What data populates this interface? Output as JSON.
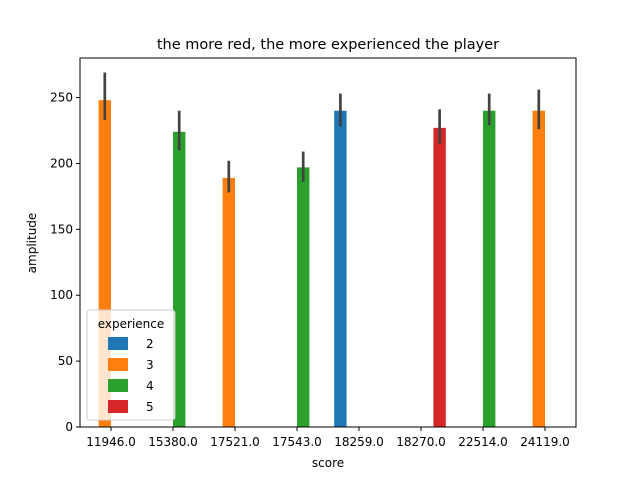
{
  "chart_data": {
    "type": "bar",
    "title": "the more red, the more experienced the player",
    "xlabel": "score",
    "ylabel": "amplitude",
    "categories": [
      "11946.0",
      "15380.0",
      "17521.0",
      "17543.0",
      "18259.0",
      "18270.0",
      "22514.0",
      "24119.0"
    ],
    "ylim": [
      0,
      280
    ],
    "yticks": [
      0,
      50,
      100,
      150,
      200,
      250
    ],
    "legend": {
      "title": "experience",
      "placement": "lower-left"
    },
    "series": [
      {
        "name": "2",
        "color": "#1f77b4",
        "values": [
          null,
          null,
          null,
          null,
          240,
          null,
          null,
          null
        ],
        "err_low": [
          null,
          null,
          null,
          null,
          228,
          null,
          null,
          null
        ],
        "err_high": [
          null,
          null,
          null,
          null,
          253,
          null,
          null,
          null
        ]
      },
      {
        "name": "3",
        "color": "#ff7f0e",
        "values": [
          248,
          null,
          189,
          null,
          null,
          null,
          null,
          240
        ],
        "err_low": [
          233,
          null,
          178,
          null,
          null,
          null,
          null,
          226
        ],
        "err_high": [
          269,
          null,
          202,
          null,
          null,
          null,
          null,
          256
        ]
      },
      {
        "name": "4",
        "color": "#2ca02c",
        "values": [
          null,
          224,
          null,
          197,
          null,
          null,
          240,
          null
        ],
        "err_low": [
          null,
          210,
          null,
          186,
          null,
          null,
          229,
          null
        ],
        "err_high": [
          null,
          240,
          null,
          209,
          null,
          null,
          253,
          null
        ]
      },
      {
        "name": "5",
        "color": "#d62728",
        "values": [
          null,
          null,
          null,
          null,
          null,
          227,
          null,
          null
        ],
        "err_low": [
          null,
          null,
          null,
          null,
          null,
          215,
          null,
          null
        ],
        "err_high": [
          null,
          null,
          null,
          null,
          null,
          241,
          null,
          null
        ]
      }
    ],
    "grid": false
  }
}
